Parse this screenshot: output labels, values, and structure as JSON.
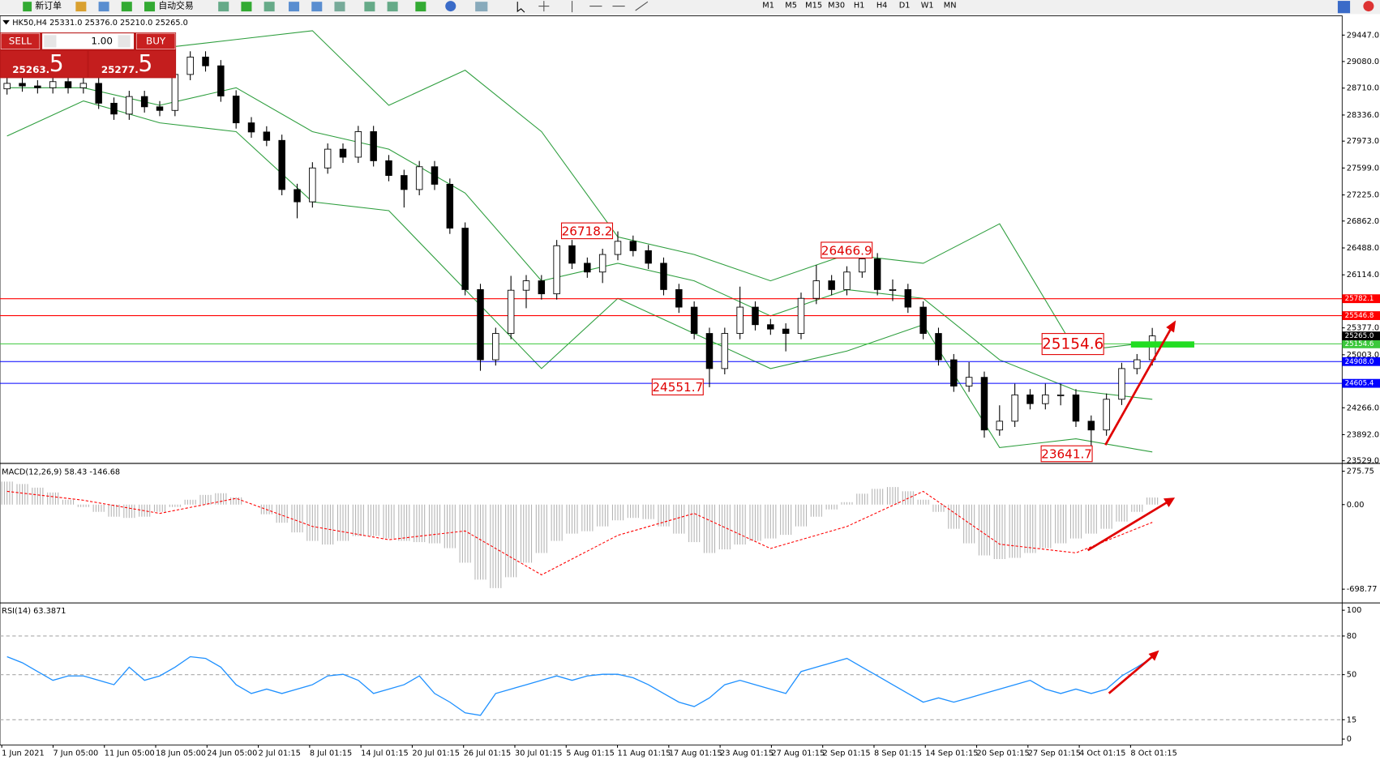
{
  "toolbar": {
    "new_order": "新订单",
    "auto_trading": "自动交易",
    "timeframes": [
      "M1",
      "M5",
      "M15",
      "M30",
      "H1",
      "H4",
      "D1",
      "W1",
      "MN"
    ]
  },
  "symbol_header": "HK50,H4  25331.0 25376.0 25210.0 25265.0",
  "trade_panel": {
    "sell": "SELL",
    "lot": "1.00",
    "buy": "BUY",
    "bid_main": "25263.",
    "bid_pip": "5",
    "ask_main": "25277.",
    "ask_pip": "5"
  },
  "time_axis": {
    "labels": [
      "1 Jun 2021",
      "7 Jun 05:00",
      "11 Jun 05:00",
      "18 Jun 05:00",
      "24 Jun 05:00",
      "2 Jul 01:15",
      "8 Jul 01:15",
      "14 Jul 01:15",
      "20 Jul 01:15",
      "26 Jul 01:15",
      "30 Jul 01:15",
      "5 Aug 01:15",
      "11 Aug 01:15",
      "17 Aug 01:15",
      "23 Aug 01:15",
      "27 Aug 01:15",
      "2 Sep 01:15",
      "8 Sep 01:15",
      "14 Sep 01:15",
      "20 Sep 01:15",
      "27 Sep 01:15",
      "4 Oct 01:15",
      "8 Oct 01:15"
    ]
  },
  "chart_data": [
    {
      "type": "candlestick",
      "open": [
        28700,
        28776,
        28740,
        28715,
        28800,
        28715,
        28776,
        28500,
        28349,
        28593,
        28450,
        28400,
        28900,
        29142,
        29020,
        28600,
        28227,
        28100,
        27983,
        27300,
        27129,
        27600,
        27861,
        27750,
        28105,
        27700,
        27495,
        27300,
        27617,
        27373,
        26763,
        25909,
        24933,
        25299,
        25900,
        26031,
        25850,
        26519,
        26275,
        26153,
        26397,
        26580,
        26450,
        26275,
        25909,
        25665,
        25299,
        24811,
        25299,
        25665,
        25421,
        25360,
        25299,
        25787,
        26031,
        25909,
        26153,
        26336,
        25909,
        25909,
        25665,
        25299,
        24933,
        24567,
        24689,
        23957,
        24079,
        24445,
        24323,
        24445,
        24445,
        24079,
        23957,
        24384,
        24811,
        24933
      ],
      "high": [
        28856,
        28856,
        28820,
        28880,
        28880,
        28856,
        28856,
        28580,
        28673,
        28673,
        28530,
        28980,
        29222,
        29222,
        29100,
        28680,
        28307,
        28180,
        28063,
        27380,
        27680,
        27941,
        27941,
        28185,
        28185,
        27780,
        27575,
        27697,
        27697,
        27453,
        26843,
        25989,
        25379,
        26100,
        26111,
        26111,
        26599,
        26599,
        26355,
        26477,
        26718.2,
        26660,
        26530,
        26355,
        25989,
        25745,
        25379,
        25379,
        25950,
        25745,
        25501,
        25440,
        25867,
        26250,
        26111,
        26233,
        26466.9,
        26416,
        26050,
        25989,
        25745,
        25379,
        25013,
        24900,
        24769,
        24300,
        24600,
        24525,
        24600,
        24600,
        24525,
        24159,
        24464,
        24891,
        25013,
        25376
      ],
      "low": [
        28620,
        28660,
        28635,
        28635,
        28635,
        28635,
        28420,
        28269,
        28269,
        28370,
        28320,
        28320,
        28820,
        28940,
        28520,
        28147,
        28020,
        27903,
        27220,
        26900,
        27049,
        27520,
        27670,
        27670,
        27620,
        27415,
        27050,
        27220,
        27293,
        26683,
        25829,
        24780,
        24853,
        25219,
        25650,
        25770,
        25770,
        26195,
        26073,
        26000,
        26317,
        26370,
        26195,
        25829,
        25585,
        25219,
        24551.7,
        24731,
        25219,
        25341,
        25280,
        25050,
        25219,
        25707,
        25829,
        25829,
        26073,
        25829,
        25750,
        25585,
        25219,
        24853,
        24487,
        24487,
        23850,
        23877,
        23999,
        24243,
        24243,
        24300,
        23999,
        23641.7,
        23877,
        24304,
        24731,
        24853
      ],
      "close": [
        28776,
        28740,
        28715,
        28800,
        28715,
        28776,
        28500,
        28349,
        28593,
        28450,
        28400,
        28900,
        29142,
        29020,
        28600,
        28227,
        28100,
        27983,
        27300,
        27129,
        27600,
        27861,
        27750,
        28105,
        27700,
        27495,
        27300,
        27617,
        27373,
        26763,
        25909,
        24933,
        25299,
        25900,
        26031,
        25850,
        26519,
        26275,
        26153,
        26397,
        26580,
        26450,
        26275,
        25909,
        25665,
        25299,
        24811,
        25299,
        25665,
        25421,
        25360,
        25299,
        25787,
        26031,
        25909,
        26153,
        26336,
        25909,
        25909,
        25665,
        25299,
        24933,
        24567,
        24689,
        23957,
        24079,
        24445,
        24323,
        24445,
        24445,
        24079,
        23957,
        24384,
        24811,
        24933,
        25265
      ],
      "bands": {
        "color": "#2e9e3e",
        "x": [
          0,
          5,
          10,
          15,
          20,
          25,
          30,
          35,
          40,
          45,
          50,
          55,
          60,
          65,
          70,
          75
        ],
        "upper": [
          28898,
          29142,
          29264,
          29386,
          29508,
          28471,
          28959,
          28105,
          26641,
          26397,
          26031,
          26397,
          26275,
          26824,
          25055,
          25177
        ],
        "middle": [
          28715,
          28715,
          28471,
          28715,
          28105,
          27861,
          27251,
          26031,
          26275,
          26031,
          25543,
          25909,
          25787,
          24933,
          24506,
          24384
        ],
        "lower": [
          28044,
          28532,
          28227,
          28105,
          27129,
          27007,
          25909,
          24811,
          25787,
          25299,
          24811,
          25055,
          25421,
          23713,
          23835,
          23652
        ]
      },
      "hlines": [
        {
          "value": 25782.1,
          "label": "25782.1",
          "color": "#ff0000"
        },
        {
          "value": 25546.8,
          "label": "25546.8",
          "color": "#ff0000"
        },
        {
          "value": 25154.6,
          "label": "25154.6",
          "color": "#3cc83c"
        },
        {
          "value": 24908.0,
          "label": "24908.0",
          "color": "#0000ff"
        },
        {
          "value": 24605.4,
          "label": "24605.4",
          "color": "#0000ff"
        }
      ],
      "current_price": {
        "value": 25265.0,
        "label": "25265.0"
      },
      "annotations": [
        "26718.2",
        "26466.9",
        "24551.7",
        "23641.7",
        "25154.6"
      ],
      "ylim": [
        23505,
        29691
      ],
      "yticks": [
        {
          "value": 29447,
          "label": "29447.0"
        },
        {
          "value": 29080,
          "label": "29080.0"
        },
        {
          "value": 28710,
          "label": "28710.0"
        },
        {
          "value": 28336,
          "label": "28336.0"
        },
        {
          "value": 27973,
          "label": "27973.0"
        },
        {
          "value": 27599,
          "label": "27599.0"
        },
        {
          "value": 27225,
          "label": "27225.0"
        },
        {
          "value": 26862,
          "label": "26862.0"
        },
        {
          "value": 26488,
          "label": "26488.0"
        },
        {
          "value": 26114,
          "label": "26114.0"
        },
        {
          "value": 25377,
          "label": "25377.0"
        },
        {
          "value": 25003,
          "label": "25003.0"
        },
        {
          "value": 24266,
          "label": "24266.0"
        },
        {
          "value": 23892,
          "label": "23892.0"
        },
        {
          "value": 23529,
          "label": "23529.0"
        }
      ]
    },
    {
      "type": "macd",
      "title": "MACD(12,26,9) 58.43 -146.68",
      "bar_color": "#b4b4b4",
      "values": [
        190,
        170,
        140,
        100,
        40,
        -20,
        -60,
        -100,
        -110,
        -100,
        -60,
        -20,
        40,
        80,
        94,
        60,
        0,
        -80,
        -150,
        -230,
        -300,
        -330,
        -300,
        -260,
        -260,
        -280,
        -300,
        -310,
        -320,
        -360,
        -480,
        -620,
        -690,
        -600,
        -480,
        -400,
        -300,
        -240,
        -220,
        -180,
        -130,
        -110,
        -120,
        -180,
        -240,
        -310,
        -400,
        -370,
        -330,
        -300,
        -280,
        -250,
        -180,
        -100,
        -40,
        20,
        90,
        130,
        145,
        110,
        40,
        -60,
        -200,
        -320,
        -420,
        -450,
        -440,
        -400,
        -360,
        -320,
        -280,
        -240,
        -200,
        -140,
        -60,
        58.43
      ],
      "signal": {
        "color": "#ff0000",
        "x": [
          0,
          5,
          10,
          15,
          20,
          25,
          30,
          35,
          40,
          45,
          50,
          55,
          60,
          65,
          70,
          75
        ],
        "values": [
          109,
          36,
          -73,
          51,
          -181,
          -290,
          -218,
          -580,
          -254,
          -73,
          -363,
          -181,
          109,
          -327,
          -399,
          -146.68
        ]
      },
      "ylim": [
        -805,
        326
      ],
      "yticks": [
        275.75,
        {
          "value": 0,
          "label": "0.00"
        },
        -698.77
      ]
    },
    {
      "type": "line",
      "title": "RSI(14) 63.3871",
      "color": "#1e90ff",
      "values": [
        63.9,
        59.2,
        52.4,
        45.6,
        49.0,
        49.0,
        45.6,
        42.2,
        55.8,
        45.6,
        49.0,
        55.8,
        63.9,
        62.6,
        55.8,
        42.2,
        35.4,
        38.8,
        35.4,
        38.8,
        42.2,
        49.0,
        50.3,
        45.6,
        35.4,
        38.8,
        42.2,
        49.0,
        35.4,
        28.6,
        20.4,
        18.4,
        35.4,
        38.8,
        42.2,
        45.6,
        49.0,
        45.6,
        49.0,
        50.3,
        50.3,
        47.6,
        42.2,
        35.4,
        28.6,
        25.2,
        32.0,
        42.2,
        45.6,
        42.2,
        38.8,
        35.4,
        52.4,
        55.8,
        59.2,
        62.6,
        55.8,
        49.0,
        42.2,
        35.4,
        28.6,
        32.0,
        28.6,
        32.0,
        35.4,
        38.8,
        42.2,
        45.6,
        38.8,
        35.4,
        38.8,
        35.4,
        38.8,
        49.0,
        55.8,
        63.4
      ],
      "levels": [
        80,
        50,
        15
      ],
      "ylim": [
        -4,
        105
      ],
      "yticks": [
        100,
        80,
        50,
        15,
        0
      ]
    }
  ]
}
